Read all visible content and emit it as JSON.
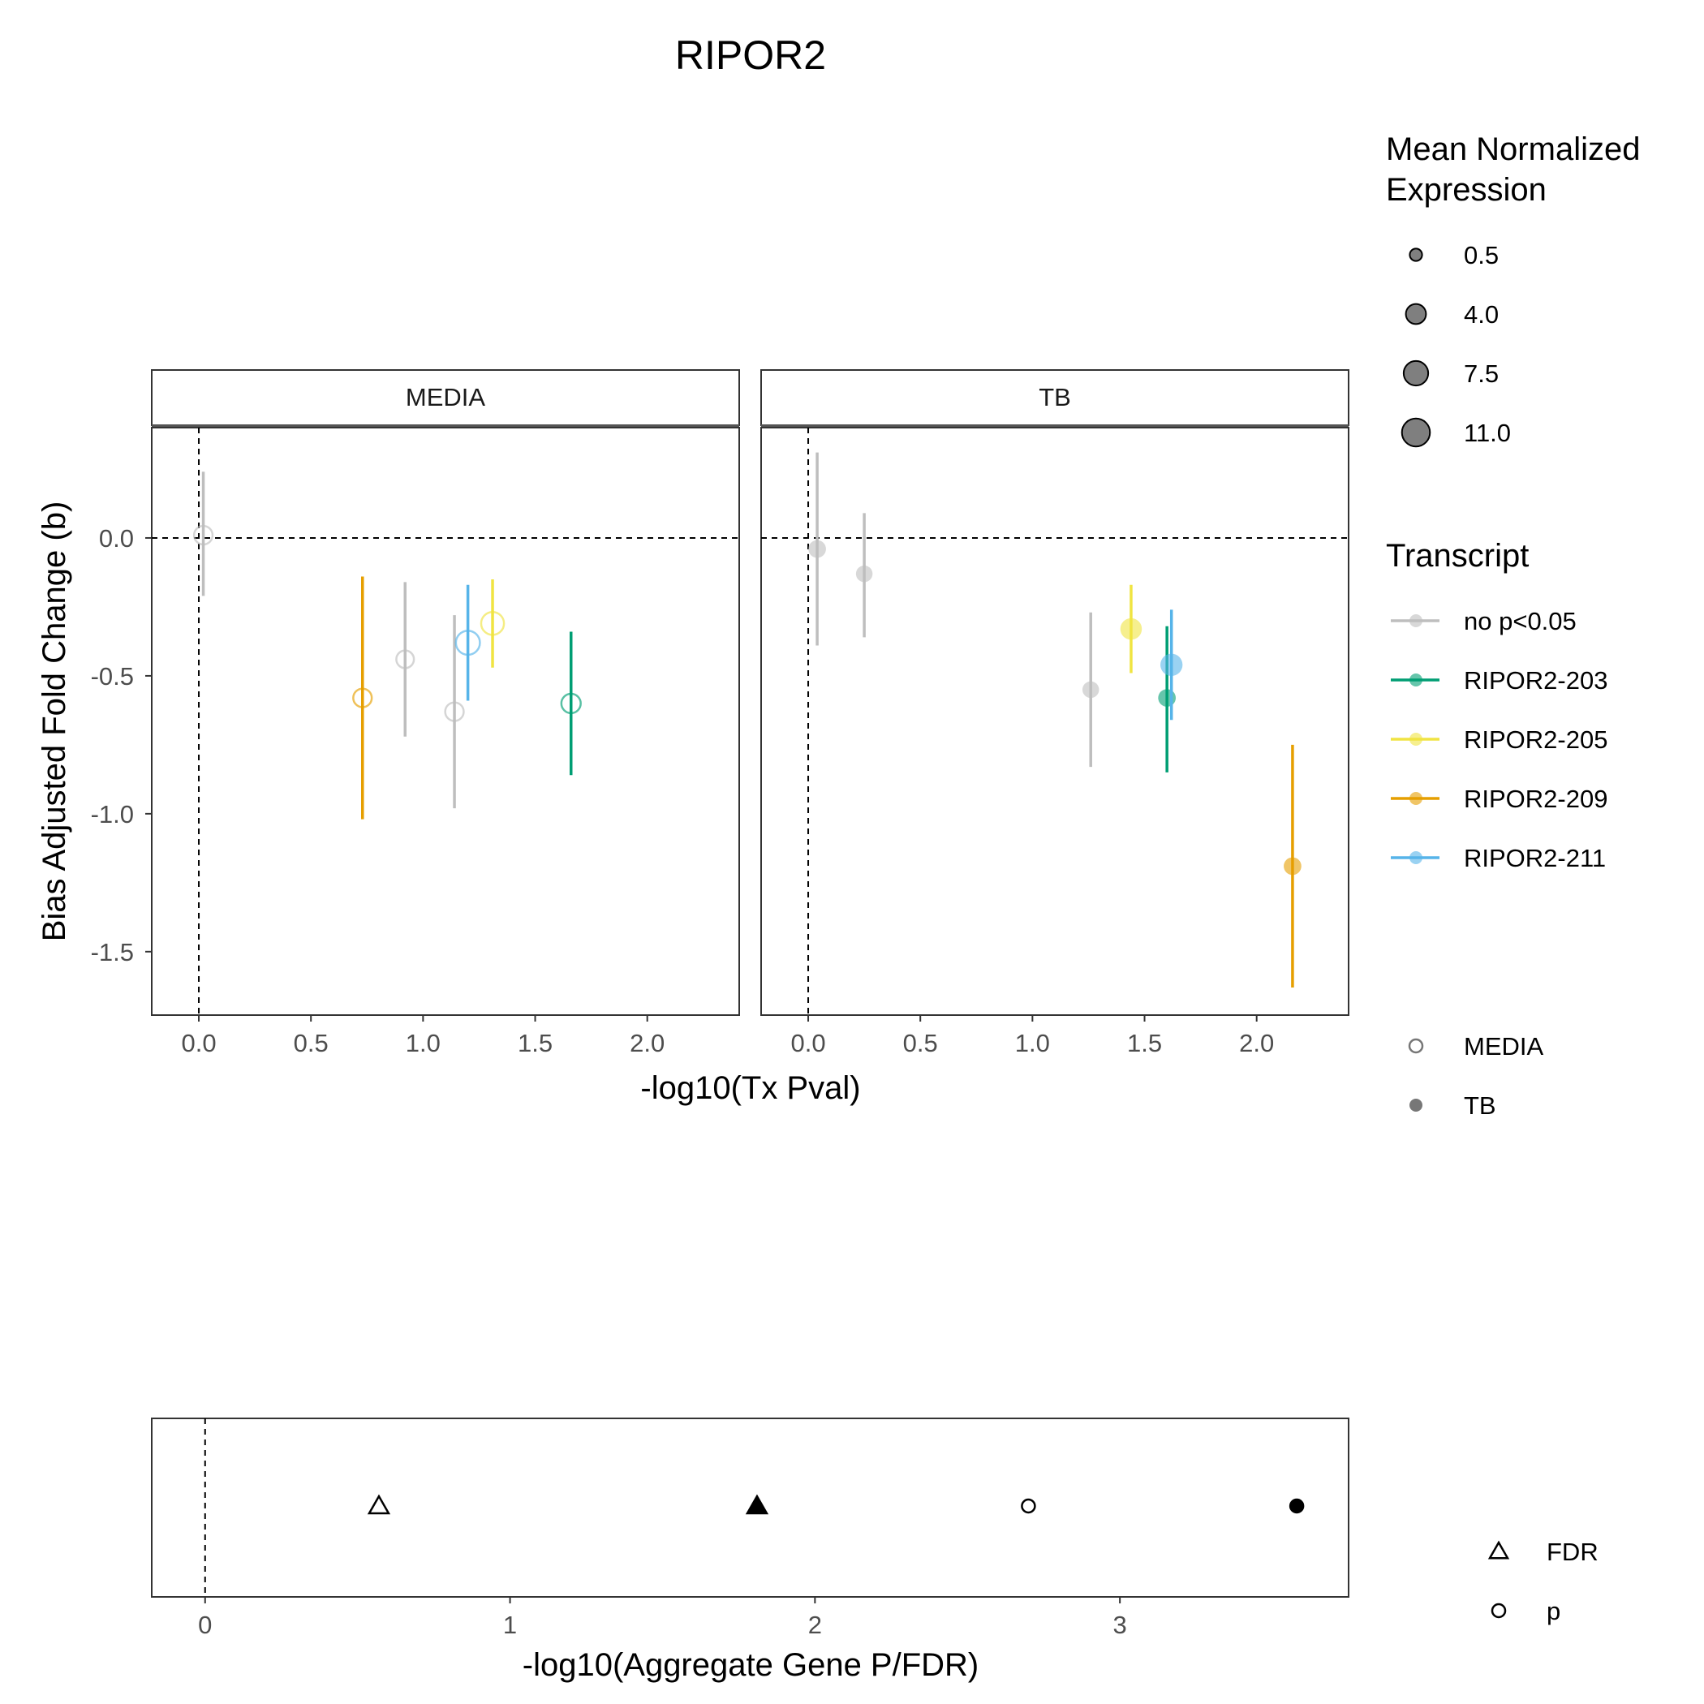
{
  "chart_data": [
    {
      "type": "scatter",
      "title": "RIPOR2",
      "xlabel": "-log10(Tx Pval)",
      "ylabel": "Bias Adjusted Fold Change (b)",
      "xlim": [
        -0.21,
        2.41
      ],
      "ylim": [
        -1.73,
        0.4
      ],
      "x_ticks": [
        "0.0",
        "0.5",
        "1.0",
        "1.5",
        "2.0"
      ],
      "x_tick_values": [
        0,
        0.5,
        1,
        1.5,
        2
      ],
      "y_ticks": [
        "0.0",
        "-0.5",
        "-1.0",
        "-1.5"
      ],
      "y_tick_values": [
        0,
        -0.5,
        -1,
        -1.5
      ],
      "reference_lines": {
        "x": 0,
        "y": 0,
        "style": "dashed"
      },
      "grid": false,
      "facets": [
        {
          "label": "MEDIA",
          "marker": "open-circle",
          "points": [
            {
              "transcript": "no p<0.05",
              "x": 0.02,
              "y": 0.01,
              "ymin": -0.21,
              "ymax": 0.24,
              "expression": 3.0
            },
            {
              "transcript": "RIPOR2-209",
              "x": 0.73,
              "y": -0.58,
              "ymin": -1.02,
              "ymax": -0.14,
              "expression": 3.0
            },
            {
              "transcript": "no p<0.05",
              "x": 0.92,
              "y": -0.44,
              "ymin": -0.72,
              "ymax": -0.16,
              "expression": 2.5
            },
            {
              "transcript": "no p<0.05",
              "x": 1.14,
              "y": -0.63,
              "ymin": -0.98,
              "ymax": -0.28,
              "expression": 3.0
            },
            {
              "transcript": "RIPOR2-211",
              "x": 1.2,
              "y": -0.38,
              "ymin": -0.59,
              "ymax": -0.17,
              "expression": 7.0
            },
            {
              "transcript": "RIPOR2-205",
              "x": 1.31,
              "y": -0.31,
              "ymin": -0.47,
              "ymax": -0.15,
              "expression": 6.0
            },
            {
              "transcript": "RIPOR2-203",
              "x": 1.66,
              "y": -0.6,
              "ymin": -0.86,
              "ymax": -0.34,
              "expression": 3.5
            }
          ]
        },
        {
          "label": "TB",
          "marker": "filled-circle",
          "points": [
            {
              "transcript": "no p<0.05",
              "x": 0.04,
              "y": -0.04,
              "ymin": -0.39,
              "ymax": 0.31,
              "expression": 2.5
            },
            {
              "transcript": "no p<0.05",
              "x": 0.25,
              "y": -0.13,
              "ymin": -0.36,
              "ymax": 0.09,
              "expression": 2.0
            },
            {
              "transcript": "no p<0.05",
              "x": 1.26,
              "y": -0.55,
              "ymin": -0.83,
              "ymax": -0.27,
              "expression": 2.0
            },
            {
              "transcript": "RIPOR2-205",
              "x": 1.44,
              "y": -0.33,
              "ymin": -0.49,
              "ymax": -0.17,
              "expression": 5.0
            },
            {
              "transcript": "RIPOR2-203",
              "x": 1.6,
              "y": -0.58,
              "ymin": -0.85,
              "ymax": -0.32,
              "expression": 2.5
            },
            {
              "transcript": "RIPOR2-211",
              "x": 1.62,
              "y": -0.46,
              "ymin": -0.66,
              "ymax": -0.26,
              "expression": 5.5
            },
            {
              "transcript": "RIPOR2-209",
              "x": 2.16,
              "y": -1.19,
              "ymin": -1.63,
              "ymax": -0.75,
              "expression": 2.5
            }
          ]
        }
      ]
    },
    {
      "type": "scatter",
      "xlabel": "-log10(Aggregate Gene P/FDR)",
      "xlim": [
        -0.175,
        3.75
      ],
      "x_ticks": [
        "0",
        "1",
        "2",
        "3"
      ],
      "x_tick_values": [
        0,
        1,
        2,
        3
      ],
      "reference_lines": {
        "x": 0,
        "style": "dashed"
      },
      "points": [
        {
          "metric": "FDR",
          "condition": "MEDIA",
          "x": 0.57
        },
        {
          "metric": "FDR",
          "condition": "TB",
          "x": 1.81
        },
        {
          "metric": "p",
          "condition": "MEDIA",
          "x": 2.7
        },
        {
          "metric": "p",
          "condition": "TB",
          "x": 3.58
        }
      ]
    }
  ],
  "legend": {
    "size_title_line1": "Mean Normalized",
    "size_title_line2": "Expression",
    "size_items": [
      {
        "label": "0.5",
        "value": 0.5
      },
      {
        "label": "4.0",
        "value": 4.0
      },
      {
        "label": "7.5",
        "value": 7.5
      },
      {
        "label": "11.0",
        "value": 11.0
      }
    ],
    "transcript_title": "Transcript",
    "transcripts": [
      {
        "label": "no p<0.05",
        "color": "#bebebe"
      },
      {
        "label": "RIPOR2-203",
        "color": "#009e73"
      },
      {
        "label": "RIPOR2-205",
        "color": "#f0e442"
      },
      {
        "label": "RIPOR2-209",
        "color": "#e69f00"
      },
      {
        "label": "RIPOR2-211",
        "color": "#56b4e9"
      }
    ],
    "conditions": [
      {
        "label": "MEDIA",
        "shape": "open-circle"
      },
      {
        "label": "TB",
        "shape": "filled-circle"
      }
    ],
    "metrics": [
      {
        "label": "FDR",
        "shape": "open-triangle"
      },
      {
        "label": "p",
        "shape": "open-circle"
      }
    ]
  }
}
